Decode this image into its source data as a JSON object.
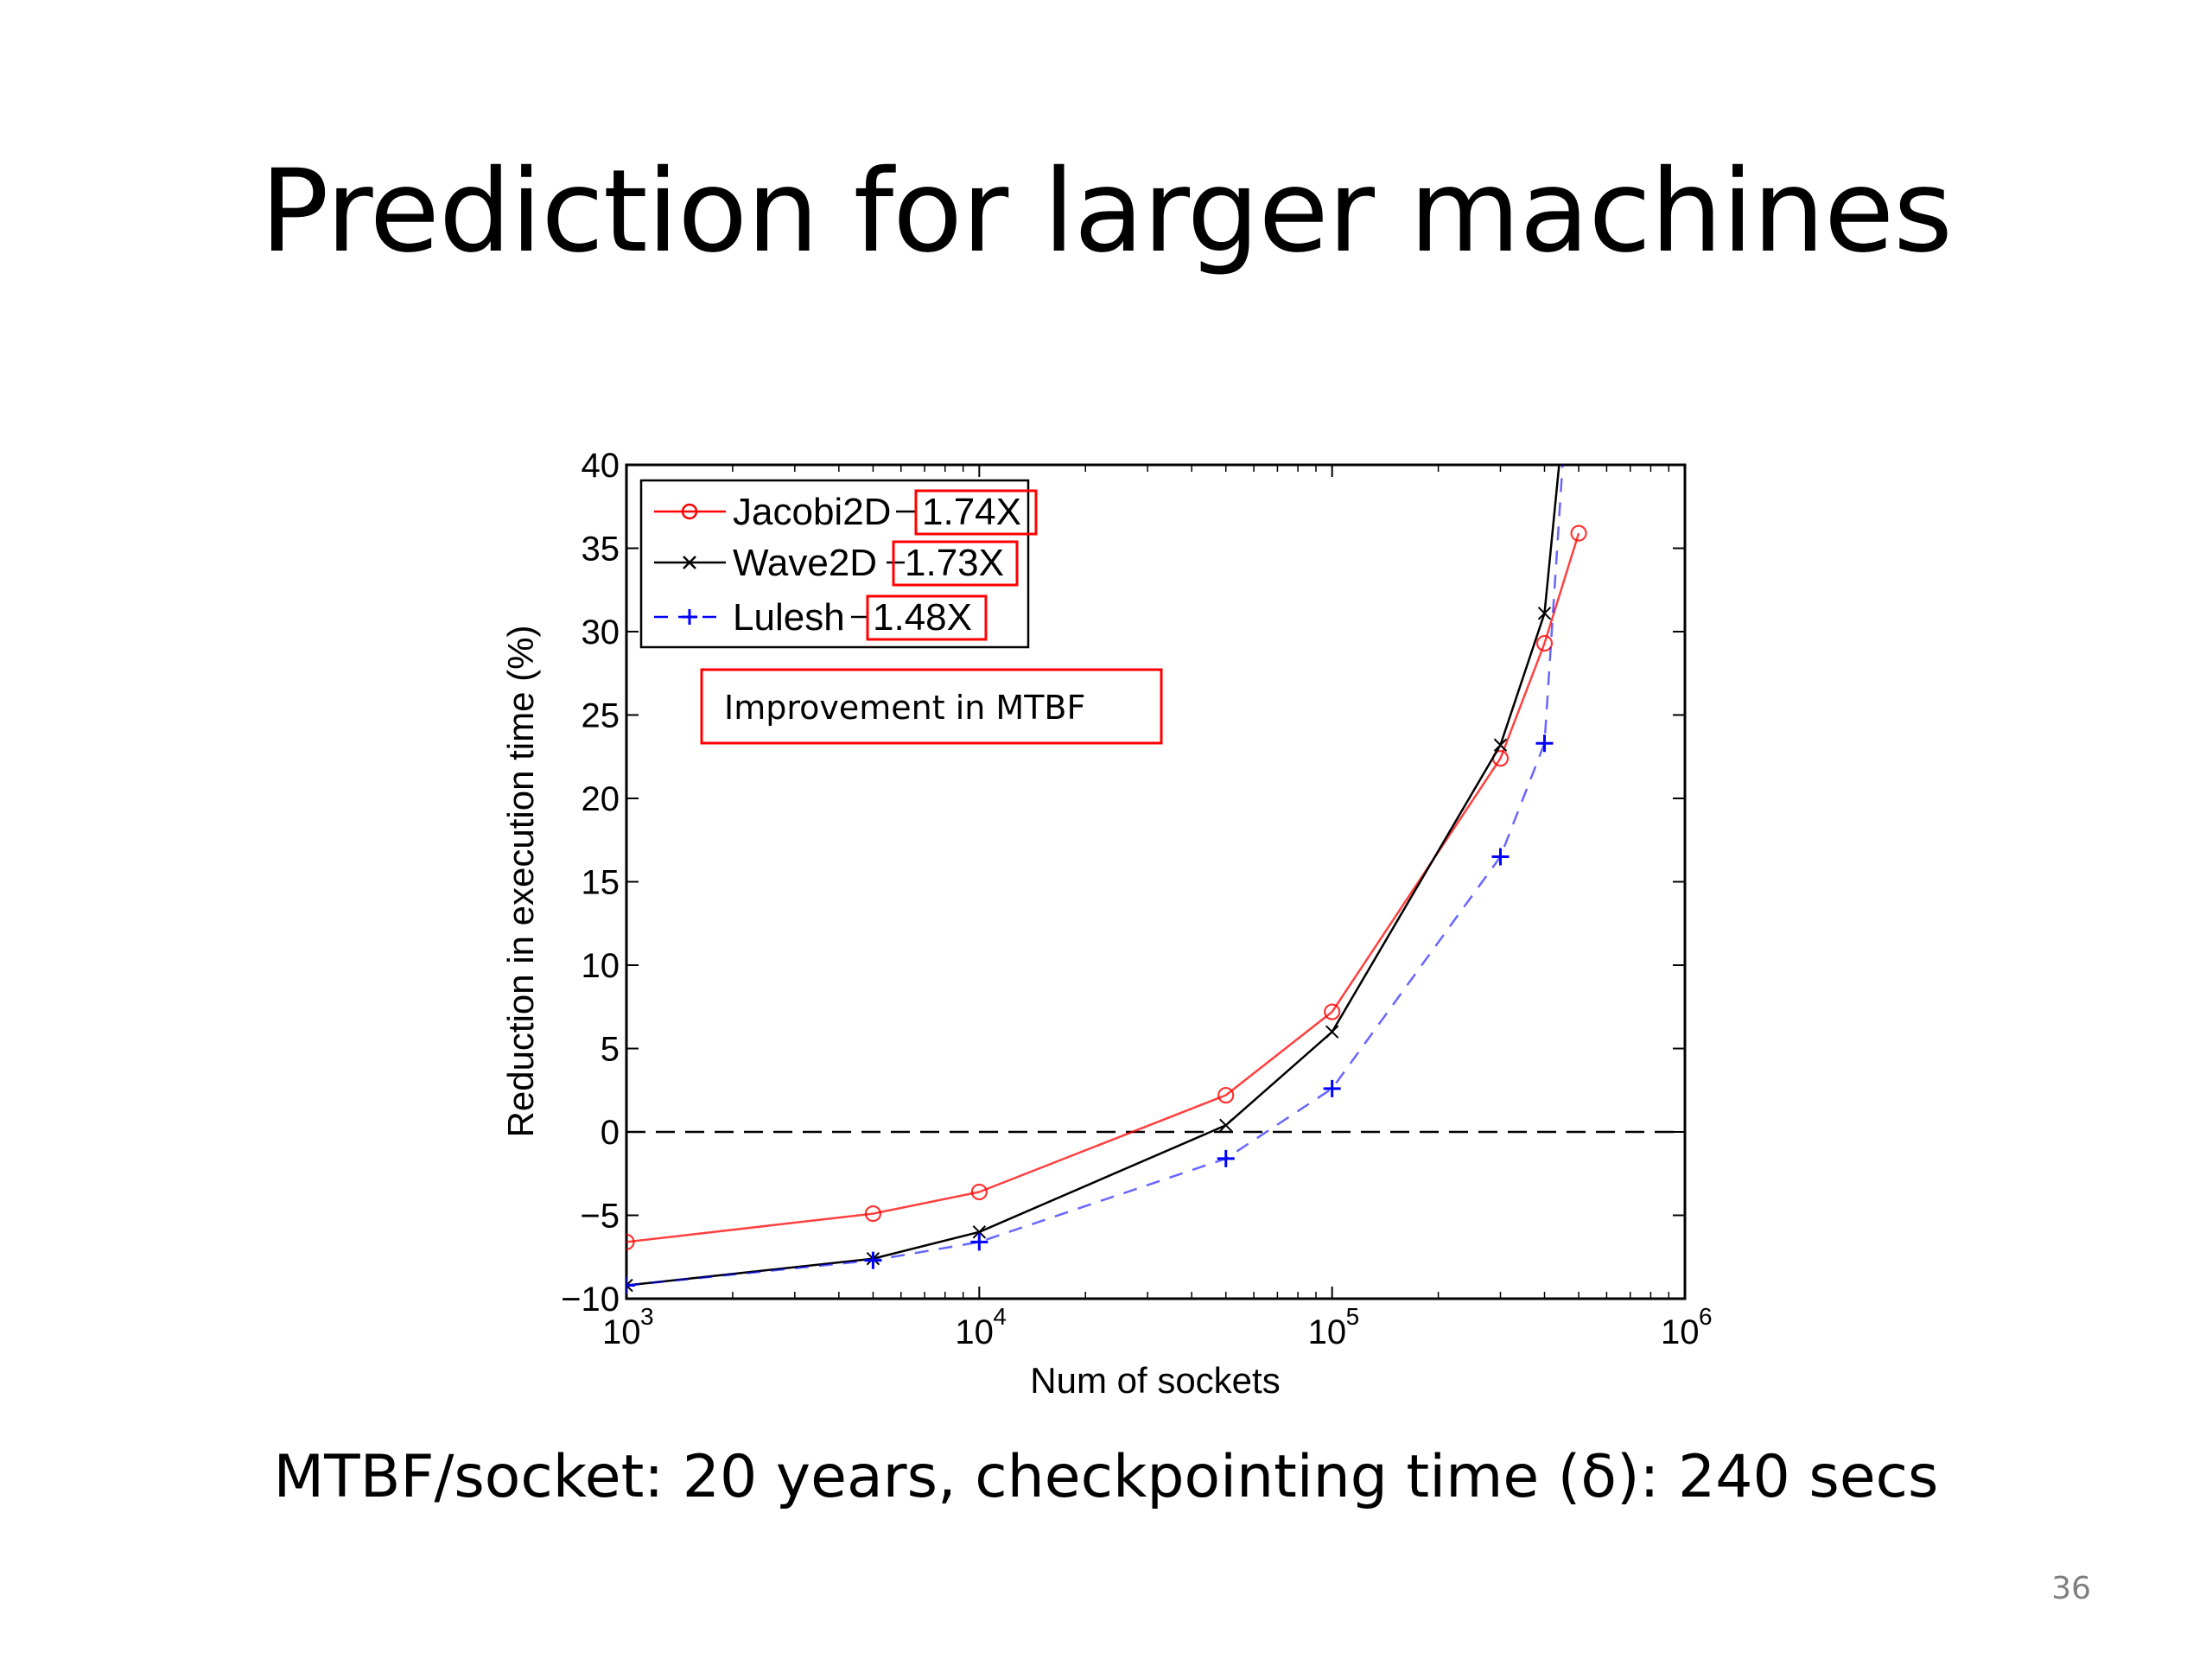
{
  "slide": {
    "title": "Prediction for larger machines",
    "caption": "MTBF/socket: 20 years, checkpointing time (δ): 240 secs",
    "page_number": "36"
  },
  "chart_data": {
    "type": "line",
    "xlabel": "Num of sockets",
    "ylabel": "Reduction in execution time (%)",
    "xscale": "log",
    "xlim": [
      1000,
      1000000
    ],
    "ylim": [
      -10,
      40
    ],
    "x_ticks": [
      {
        "value": 1000,
        "base": "10",
        "exp": "3"
      },
      {
        "value": 10000,
        "base": "10",
        "exp": "4"
      },
      {
        "value": 100000,
        "base": "10",
        "exp": "5"
      },
      {
        "value": 1000000,
        "base": "10",
        "exp": "6"
      }
    ],
    "y_ticks": [
      {
        "value": 40,
        "label": "40"
      },
      {
        "value": 35,
        "label": "35"
      },
      {
        "value": 30,
        "label": "30"
      },
      {
        "value": 25,
        "label": "25"
      },
      {
        "value": 20,
        "label": "20"
      },
      {
        "value": 15,
        "label": "15"
      },
      {
        "value": 10,
        "label": "10"
      },
      {
        "value": 5,
        "label": "5"
      },
      {
        "value": 0,
        "label": "0"
      },
      {
        "value": -5,
        "label": "−5"
      },
      {
        "value": -10,
        "label": "−10"
      }
    ],
    "reference_line": {
      "y": 0,
      "style": "dashed",
      "color": "#000000"
    },
    "legend_position": "top-left",
    "series": [
      {
        "name": "Jacobi2D",
        "improvement": "1.74X",
        "color": "#ff0000",
        "marker": "circle",
        "line": "solid",
        "points": [
          [
            1000,
            -6.6
          ],
          [
            5000,
            -4.9
          ],
          [
            10000,
            -3.6
          ],
          [
            50000,
            2.2
          ],
          [
            100000,
            7.2
          ],
          [
            300000,
            22.4
          ],
          [
            400000,
            29.3
          ],
          [
            500000,
            35.9
          ]
        ]
      },
      {
        "name": "Wave2D",
        "improvement": "1.73X",
        "color": "#000000",
        "marker": "x",
        "line": "solid",
        "points": [
          [
            1000,
            -9.2
          ],
          [
            5000,
            -7.6
          ],
          [
            10000,
            -6.0
          ],
          [
            50000,
            0.4
          ],
          [
            100000,
            6.0
          ],
          [
            300000,
            23.2
          ],
          [
            400000,
            31.1
          ],
          [
            440000,
            40
          ]
        ]
      },
      {
        "name": "Lulesh",
        "improvement": "1.48X",
        "color": "#0000ff",
        "marker": "plus",
        "line": "dashed",
        "points": [
          [
            1000,
            -9.2
          ],
          [
            5000,
            -7.7
          ],
          [
            10000,
            -6.6
          ],
          [
            50000,
            -1.6
          ],
          [
            100000,
            2.6
          ],
          [
            300000,
            16.5
          ],
          [
            400000,
            23.3
          ],
          [
            450000,
            40
          ]
        ]
      }
    ],
    "annotation": {
      "text": "Improvement in MTBF",
      "border_color": "#ff0000"
    },
    "highlight_border_color": "#ff0000"
  }
}
